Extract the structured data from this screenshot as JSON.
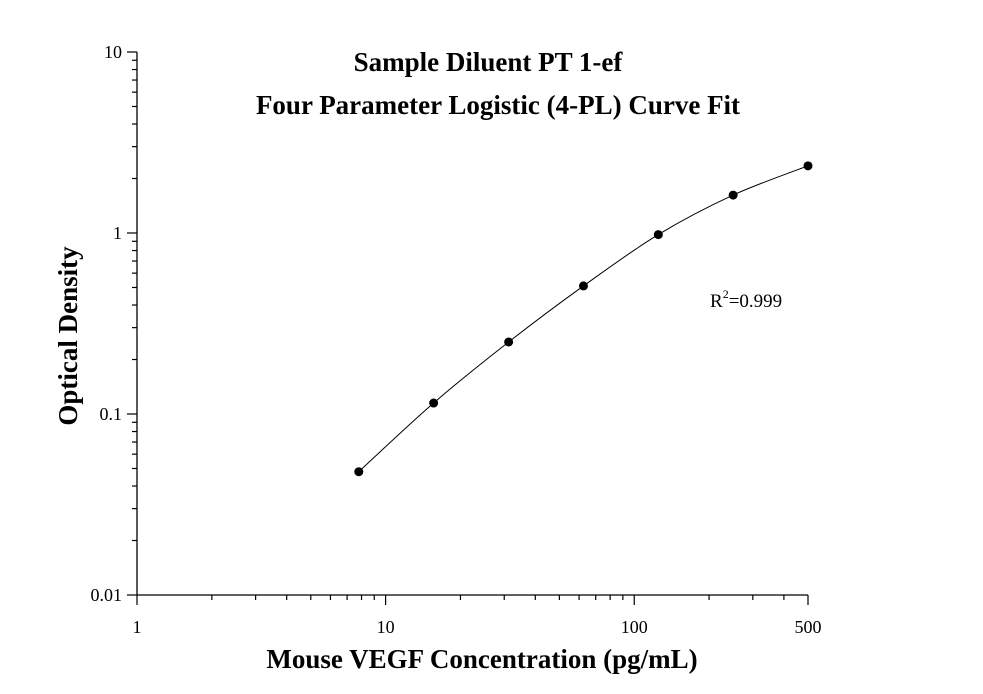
{
  "chart_data": {
    "type": "scatter",
    "title_line1": "Sample Diluent PT 1-ef",
    "title_line2": "Four Parameter Logistic (4-PL) Curve Fit",
    "xlabel": "Mouse VEGF Concentration (pg/mL)",
    "ylabel": "Optical Density",
    "x_scale": "log",
    "y_scale": "log",
    "xlim": [
      1,
      500
    ],
    "ylim": [
      0.01,
      10
    ],
    "x_ticks": [
      1,
      10,
      100,
      500
    ],
    "x_tick_labels": [
      "1",
      "10",
      "100",
      "500"
    ],
    "y_ticks": [
      0.01,
      0.1,
      1,
      10
    ],
    "y_tick_labels": [
      "0.01",
      "0.1",
      "1",
      "10"
    ],
    "grid": false,
    "series": [
      {
        "x": [
          7.8,
          15.6,
          31.25,
          62.5,
          125,
          250,
          500
        ],
        "y": [
          0.048,
          0.115,
          0.25,
          0.51,
          0.98,
          1.62,
          2.35
        ]
      }
    ],
    "fit": "4-PL curve",
    "annotation": {
      "r_prefix": "R",
      "r_sup": "2",
      "r_value": "=0.999"
    }
  }
}
